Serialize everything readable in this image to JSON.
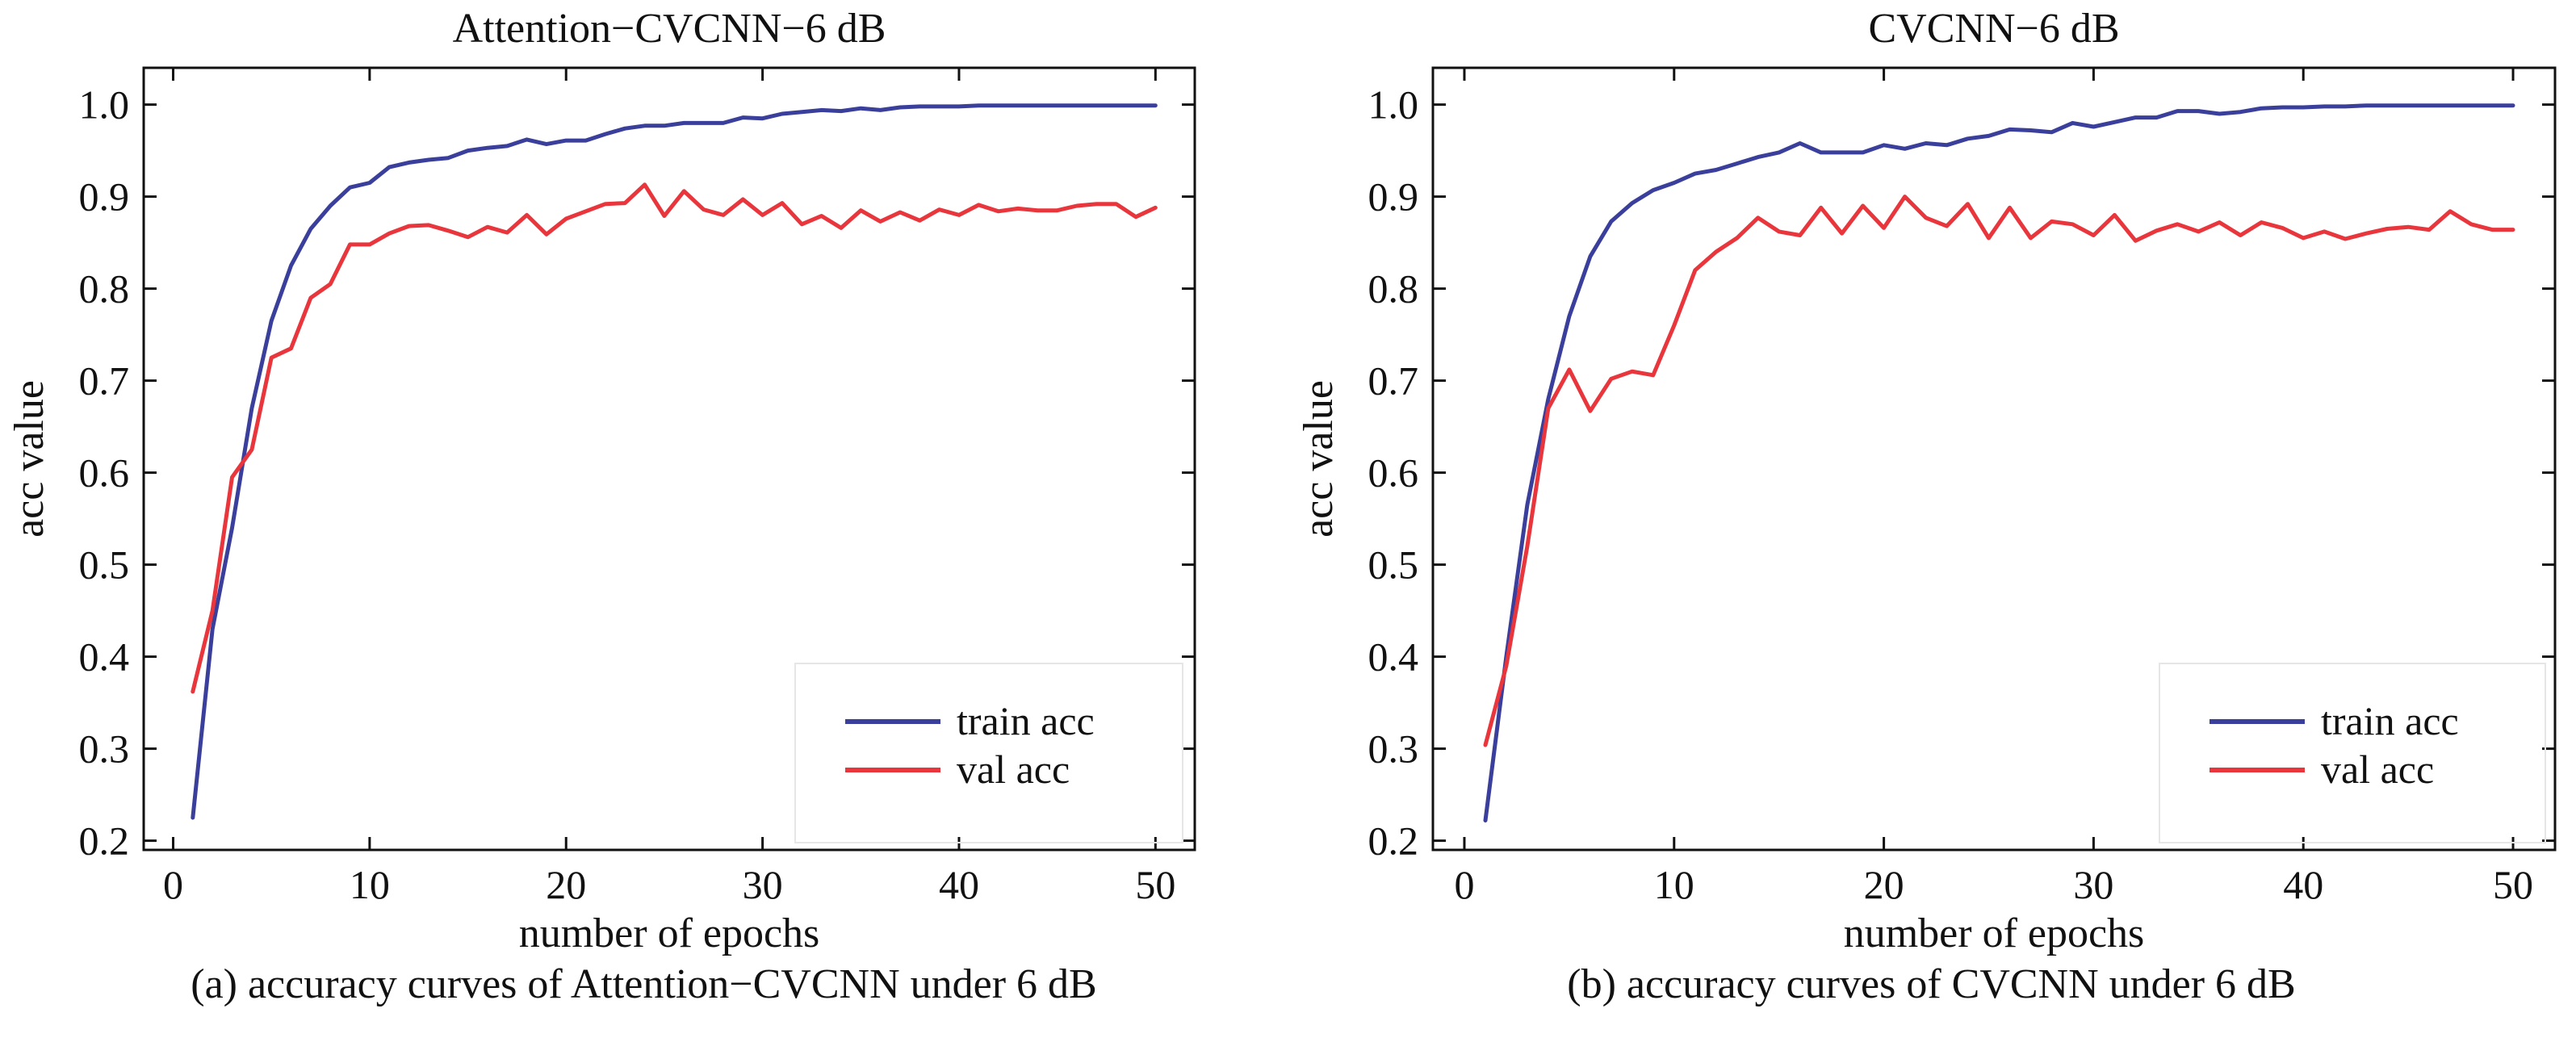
{
  "chart_data": [
    {
      "type": "line",
      "title": "Attention−CVCNN−6 dB",
      "xlabel": "number of epochs",
      "ylabel": "acc value",
      "xlim": [
        -1.5,
        52
      ],
      "ylim": [
        0.19,
        1.04
      ],
      "xticks": [
        0,
        10,
        20,
        30,
        40,
        50
      ],
      "yticks": [
        0.2,
        0.3,
        0.4,
        0.5,
        0.6,
        0.7,
        0.8,
        0.9,
        1.0
      ],
      "xtick_labels": [
        "0",
        "10",
        "20",
        "30",
        "40",
        "50"
      ],
      "ytick_labels": [
        "0.2",
        "0.3",
        "0.4",
        "0.5",
        "0.6",
        "0.7",
        "0.8",
        "0.9",
        "1.0"
      ],
      "legend_position": "bottom-right",
      "caption": "(a) accuracy curves of Attention−CVCNN under 6 dB",
      "x": [
        1,
        2,
        3,
        4,
        5,
        6,
        7,
        8,
        9,
        10,
        11,
        12,
        13,
        14,
        15,
        16,
        17,
        18,
        19,
        20,
        21,
        22,
        23,
        24,
        25,
        26,
        27,
        28,
        29,
        30,
        31,
        32,
        33,
        34,
        35,
        36,
        37,
        38,
        39,
        40,
        41,
        42,
        43,
        44,
        45,
        46,
        47,
        48,
        49,
        50
      ],
      "series": [
        {
          "name": "train acc",
          "color": "#3b3f9c",
          "values": [
            0.225,
            0.43,
            0.54,
            0.67,
            0.765,
            0.825,
            0.865,
            0.89,
            0.91,
            0.915,
            0.932,
            0.937,
            0.94,
            0.942,
            0.95,
            0.953,
            0.955,
            0.962,
            0.957,
            0.961,
            0.961,
            0.968,
            0.974,
            0.977,
            0.977,
            0.98,
            0.98,
            0.98,
            0.986,
            0.985,
            0.99,
            0.992,
            0.994,
            0.993,
            0.996,
            0.994,
            0.997,
            0.998,
            0.998,
            0.998,
            0.999,
            0.999,
            0.999,
            0.999,
            0.999,
            0.999,
            0.999,
            0.999,
            0.999,
            0.999
          ]
        },
        {
          "name": "val acc",
          "color": "#e8363c",
          "values": [
            0.362,
            0.45,
            0.595,
            0.625,
            0.725,
            0.735,
            0.79,
            0.805,
            0.848,
            0.848,
            0.86,
            0.868,
            0.869,
            0.863,
            0.856,
            0.867,
            0.861,
            0.88,
            0.859,
            0.876,
            0.884,
            0.892,
            0.893,
            0.913,
            0.879,
            0.906,
            0.886,
            0.88,
            0.897,
            0.88,
            0.893,
            0.87,
            0.879,
            0.866,
            0.885,
            0.873,
            0.883,
            0.874,
            0.886,
            0.88,
            0.891,
            0.884,
            0.887,
            0.885,
            0.885,
            0.89,
            0.892,
            0.892,
            0.878,
            0.888
          ]
        }
      ]
    },
    {
      "type": "line",
      "title": "CVCNN−6 dB",
      "xlabel": "number of epochs",
      "ylabel": "acc value",
      "xlim": [
        -1.5,
        52
      ],
      "ylim": [
        0.19,
        1.04
      ],
      "xticks": [
        0,
        10,
        20,
        30,
        40,
        50
      ],
      "yticks": [
        0.2,
        0.3,
        0.4,
        0.5,
        0.6,
        0.7,
        0.8,
        0.9,
        1.0
      ],
      "xtick_labels": [
        "0",
        "10",
        "20",
        "30",
        "40",
        "50"
      ],
      "ytick_labels": [
        "0.2",
        "0.3",
        "0.4",
        "0.5",
        "0.6",
        "0.7",
        "0.8",
        "0.9",
        "1.0"
      ],
      "legend_position": "bottom-right",
      "caption": "(b) accuracy curves of CVCNN under 6 dB",
      "x": [
        1,
        2,
        3,
        4,
        5,
        6,
        7,
        8,
        9,
        10,
        11,
        12,
        13,
        14,
        15,
        16,
        17,
        18,
        19,
        20,
        21,
        22,
        23,
        24,
        25,
        26,
        27,
        28,
        29,
        30,
        31,
        32,
        33,
        34,
        35,
        36,
        37,
        38,
        39,
        40,
        41,
        42,
        43,
        44,
        45,
        46,
        47,
        48,
        49,
        50
      ],
      "series": [
        {
          "name": "train acc",
          "color": "#3b3f9c",
          "values": [
            0.222,
            0.4,
            0.565,
            0.68,
            0.77,
            0.835,
            0.873,
            0.893,
            0.907,
            0.915,
            0.925,
            0.929,
            0.936,
            0.943,
            0.948,
            0.958,
            0.948,
            0.948,
            0.948,
            0.956,
            0.952,
            0.958,
            0.956,
            0.963,
            0.966,
            0.973,
            0.972,
            0.97,
            0.98,
            0.976,
            0.981,
            0.986,
            0.986,
            0.993,
            0.993,
            0.99,
            0.992,
            0.996,
            0.997,
            0.997,
            0.998,
            0.998,
            0.999,
            0.999,
            0.999,
            0.999,
            0.999,
            0.999,
            0.999,
            0.999
          ]
        },
        {
          "name": "val acc",
          "color": "#e8363c",
          "values": [
            0.304,
            0.39,
            0.52,
            0.67,
            0.712,
            0.667,
            0.702,
            0.71,
            0.706,
            0.76,
            0.82,
            0.84,
            0.855,
            0.877,
            0.862,
            0.858,
            0.888,
            0.86,
            0.89,
            0.866,
            0.9,
            0.877,
            0.868,
            0.892,
            0.855,
            0.888,
            0.855,
            0.873,
            0.87,
            0.858,
            0.88,
            0.852,
            0.863,
            0.87,
            0.862,
            0.872,
            0.858,
            0.872,
            0.866,
            0.855,
            0.862,
            0.854,
            0.86,
            0.865,
            0.867,
            0.864,
            0.884,
            0.87,
            0.864,
            0.864
          ]
        }
      ]
    }
  ]
}
